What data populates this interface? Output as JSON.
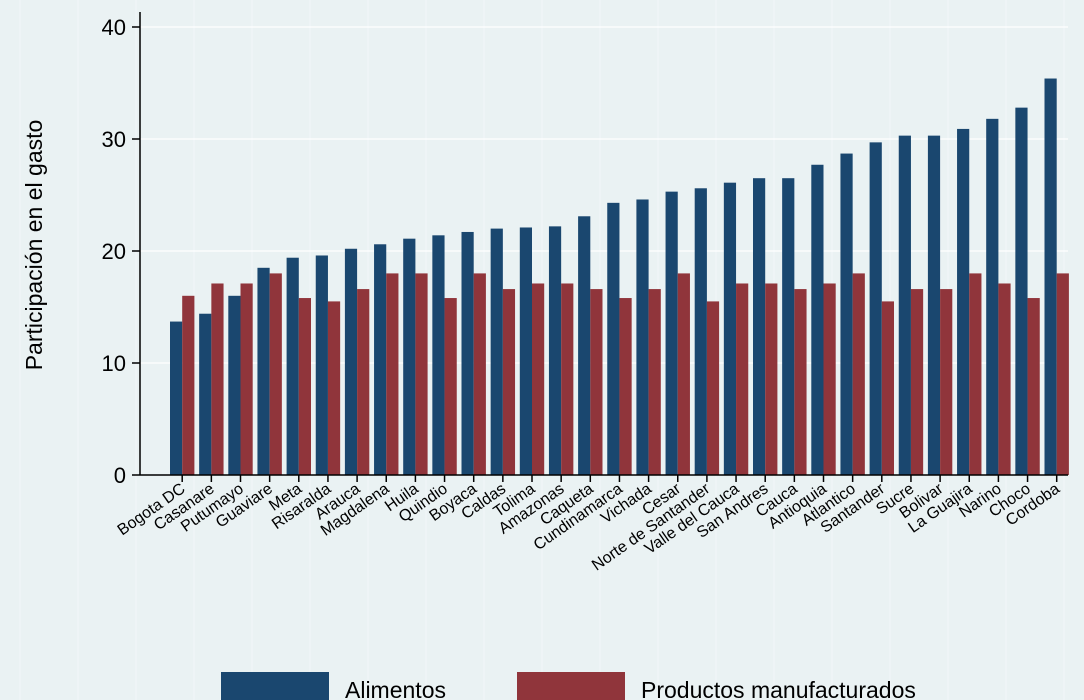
{
  "chart_data": {
    "type": "bar",
    "ylabel": "Participación en el gasto",
    "xlabel": "",
    "ylim": [
      0,
      40
    ],
    "yticks": [
      0,
      10,
      20,
      30,
      40
    ],
    "grid": true,
    "legend_position": "bottom",
    "categories": [
      "Bogota DC",
      "Casanare",
      "Putumayo",
      "Guaviare",
      "Meta",
      "Risaralda",
      "Arauca",
      "Magdalena",
      "Huila",
      "Quindio",
      "Boyaca",
      "Caldas",
      "Tolima",
      "Amazonas",
      "Caqueta",
      "Cundinamarca",
      "Vichada",
      "Cesar",
      "Norte de Santander",
      "Valle del Cauca",
      "San Andres",
      "Cauca",
      "Antioquia",
      "Atlantico",
      "Santander",
      "Sucre",
      "Bolivar",
      "La Guajira",
      "Narino",
      "Choco",
      "Cordoba"
    ],
    "series": [
      {
        "name": "Alimentos",
        "color": "#1a476f",
        "values": [
          13.7,
          14.4,
          16.0,
          18.5,
          19.4,
          19.6,
          20.2,
          20.6,
          21.1,
          21.4,
          21.7,
          22.0,
          22.1,
          22.2,
          23.1,
          24.3,
          24.6,
          25.3,
          25.6,
          26.1,
          26.5,
          26.5,
          27.7,
          28.7,
          29.7,
          30.3,
          30.3,
          30.9,
          31.8,
          32.8,
          35.4
        ]
      },
      {
        "name": "Productos manufacturados",
        "color": "#90353b",
        "values": [
          16.0,
          17.1,
          17.1,
          18.0,
          15.8,
          15.5,
          16.6,
          18.0,
          18.0,
          15.8,
          18.0,
          16.6,
          17.1,
          17.1,
          16.6,
          15.8,
          16.6,
          18.0,
          15.5,
          17.1,
          17.1,
          16.6,
          17.1,
          18.0,
          15.5,
          16.6,
          16.6,
          18.0,
          17.1,
          15.8,
          18.0
        ]
      }
    ]
  },
  "colors": {
    "background": "#eaf2f3",
    "grid": "#ffffff",
    "axis": "#000000"
  }
}
